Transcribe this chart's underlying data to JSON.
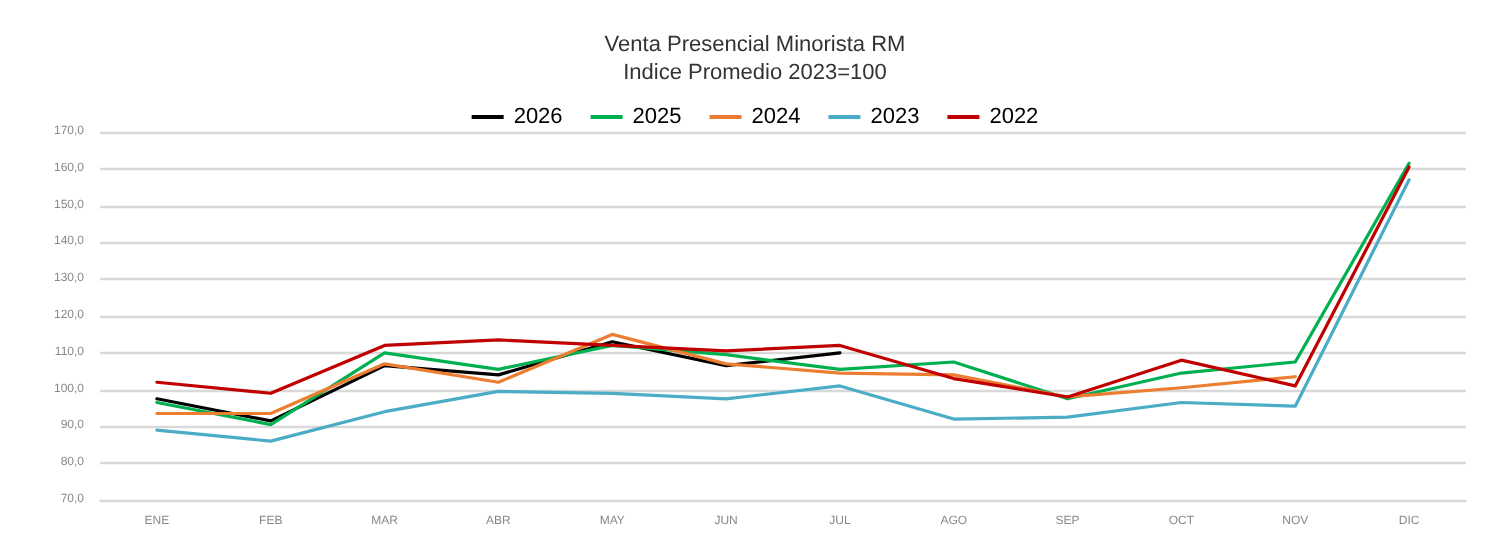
{
  "chart_data": {
    "type": "line",
    "title": "Venta Presencial Minorista RM",
    "subtitle": "Indice Promedio 2023=100",
    "categories": [
      "ENE",
      "FEB",
      "MAR",
      "ABR",
      "MAY",
      "JUN",
      "JUL",
      "AGO",
      "SEP",
      "OCT",
      "NOV",
      "DIC"
    ],
    "series": [
      {
        "name": "2026",
        "color": "#000000",
        "values": [
          97.5,
          91.5,
          106.5,
          104,
          113,
          106.5,
          110,
          null,
          null,
          null,
          null,
          null
        ]
      },
      {
        "name": "2025",
        "color": "#00b050",
        "values": [
          96.5,
          90.5,
          110,
          105.5,
          112,
          109.5,
          105.5,
          107.5,
          97.5,
          104.5,
          107.5,
          161.5
        ]
      },
      {
        "name": "2024",
        "color": "#ed7d31",
        "values": [
          93.5,
          93.5,
          107,
          102,
          115,
          107,
          104.5,
          104,
          98,
          100.5,
          103.5,
          null
        ]
      },
      {
        "name": "2023",
        "color": "#4bacc6",
        "values": [
          89,
          86,
          94,
          99.5,
          99,
          97.5,
          101,
          92,
          92.5,
          96.5,
          95.5,
          157
        ]
      },
      {
        "name": "2022",
        "color": "#c00000",
        "values": [
          102,
          99,
          112,
          113.5,
          112,
          110.5,
          112,
          103,
          98,
          108,
          101,
          160.5
        ]
      }
    ],
    "ylim": [
      70,
      170
    ],
    "yticks": [
      {
        "value": 70,
        "label": "70,0"
      },
      {
        "value": 80,
        "label": "80,0"
      },
      {
        "value": 90,
        "label": "90,0"
      },
      {
        "value": 100,
        "label": "100,0"
      },
      {
        "value": 110,
        "label": "110,0"
      },
      {
        "value": 120,
        "label": "120,0"
      },
      {
        "value": 130,
        "label": "130,0"
      },
      {
        "value": 140,
        "label": "140,0"
      },
      {
        "value": 150,
        "label": "150,0"
      },
      {
        "value": 160,
        "label": "160,0"
      },
      {
        "value": 170,
        "label": "170,0"
      }
    ],
    "grid": "y",
    "legend": "top",
    "marker": "none",
    "line_style": "solid"
  }
}
